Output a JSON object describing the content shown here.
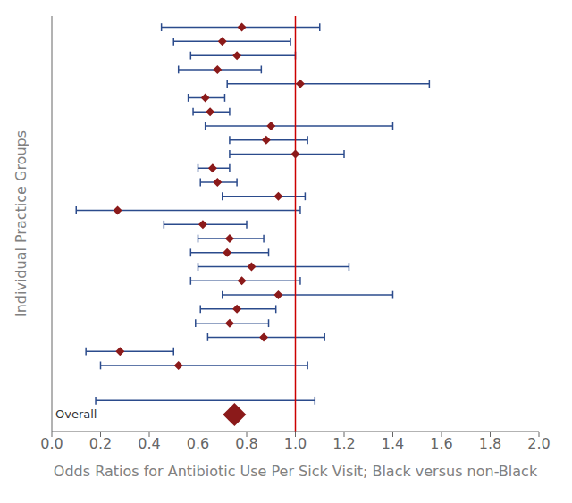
{
  "chart_data": {
    "type": "forest",
    "xlabel": "Odds Ratios for Antibiotic Use Per Sick Visit; Black versus non-Black",
    "ylabel": "Individual Practice Groups",
    "xlim": [
      0.0,
      2.0
    ],
    "xticks": [
      {
        "value": 0.0,
        "label": "0.0"
      },
      0.2,
      0.4,
      0.6,
      0.8,
      {
        "value": 1.0,
        "label": "1.0"
      },
      1.2,
      1.4,
      1.6,
      1.8,
      {
        "value": 2.0,
        "label": "2.0"
      }
    ],
    "tick_labels": "x",
    "grid": false,
    "series": [
      {
        "type": "scatter",
        "marker": "diamond",
        "color": "#8B1A1A",
        "values": [
          0.78,
          0.7,
          0.76,
          0.68,
          1.02,
          0.63,
          0.65,
          0.9,
          0.88,
          1.0,
          0.66,
          0.68,
          0.93,
          0.27,
          0.62,
          0.73,
          0.72,
          0.82,
          0.78,
          0.93,
          0.76,
          0.73,
          0.87,
          0.28,
          0.52
        ]
      },
      {
        "type": "errorbar",
        "color": "#2B4B8C",
        "low": [
          0.45,
          0.5,
          0.57,
          0.52,
          0.72,
          0.56,
          0.58,
          0.63,
          0.73,
          0.73,
          0.6,
          0.61,
          0.7,
          0.1,
          0.46,
          0.6,
          0.57,
          0.6,
          0.57,
          0.7,
          0.61,
          0.59,
          0.64,
          0.14,
          0.2
        ],
        "high": [
          1.1,
          0.98,
          1.0,
          0.86,
          1.55,
          0.71,
          0.73,
          1.4,
          1.05,
          1.2,
          0.73,
          0.76,
          1.04,
          1.02,
          0.8,
          0.87,
          0.89,
          1.22,
          1.02,
          1.4,
          0.92,
          0.89,
          1.12,
          0.5,
          1.05
        ]
      }
    ],
    "overall": {
      "label": "Overall",
      "value": 0.75,
      "ci_low": 0.18,
      "ci_high": 1.08,
      "marker": "diamond",
      "color": "#8B1A1A"
    },
    "reference_line": {
      "value": 1.0,
      "color": "#CC0000"
    }
  }
}
